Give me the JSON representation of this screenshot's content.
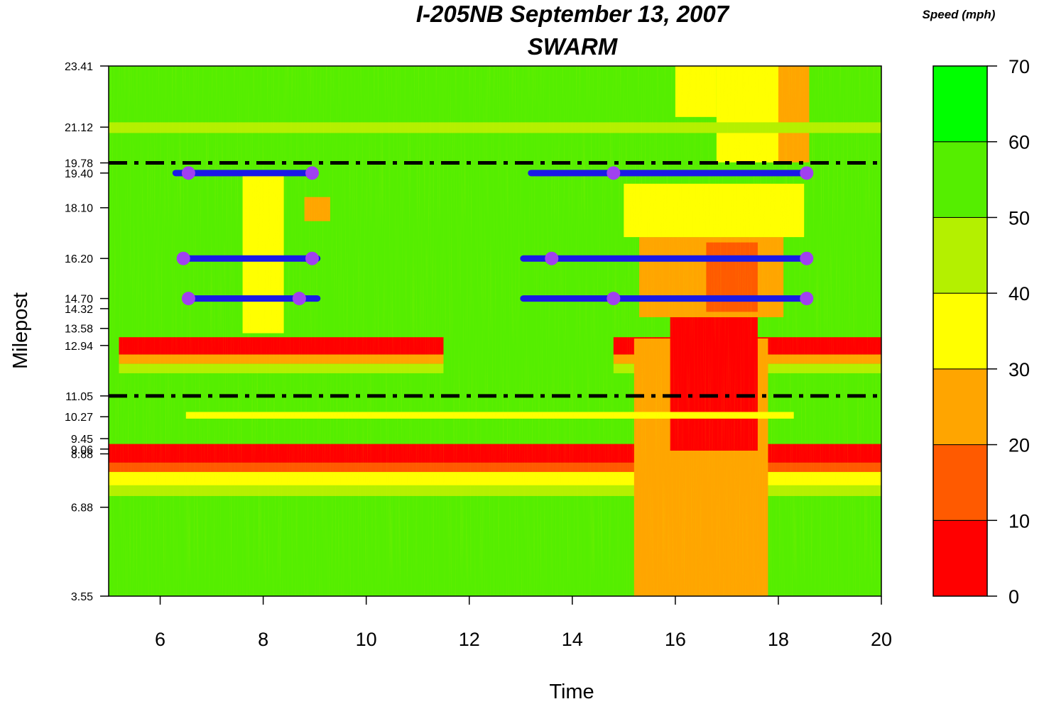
{
  "chart_data": {
    "type": "heatmap",
    "title": "I-205NB September 13, 2007",
    "subtitle": "SWARM",
    "xlabel": "Time",
    "ylabel": "Milepost",
    "xlim": [
      5,
      20
    ],
    "ylim": [
      3.55,
      23.41
    ],
    "x_ticks": [
      6,
      8,
      10,
      12,
      14,
      16,
      18,
      20
    ],
    "y_ticks": [
      "3.55",
      "6.88",
      "8.88",
      "9.06",
      "9.45",
      "10.27",
      "11.05",
      "12.94",
      "13.58",
      "14.32",
      "14.70",
      "16.20",
      "18.10",
      "19.40",
      "19.78",
      "21.12",
      "23.41"
    ],
    "colorbar": {
      "label": "Speed (mph)",
      "ticks": [
        0,
        10,
        20,
        30,
        40,
        50,
        60,
        70
      ],
      "bins": [
        {
          "from": 0,
          "to": 10,
          "color": "#ff0000"
        },
        {
          "from": 10,
          "to": 20,
          "color": "#ff5a00"
        },
        {
          "from": 20,
          "to": 30,
          "color": "#ffa500"
        },
        {
          "from": 30,
          "to": 40,
          "color": "#ffff00"
        },
        {
          "from": 40,
          "to": 50,
          "color": "#b4f000"
        },
        {
          "from": 50,
          "to": 60,
          "color": "#55ee00"
        },
        {
          "from": 60,
          "to": 70,
          "color": "#00ff00"
        }
      ]
    },
    "background_speed": 55,
    "congestion_regions": [
      {
        "t": [
          5.0,
          20.0
        ],
        "mp": [
          8.55,
          9.25
        ],
        "speed": 5
      },
      {
        "t": [
          5.0,
          20.0
        ],
        "mp": [
          8.2,
          8.55
        ],
        "speed": 18
      },
      {
        "t": [
          5.0,
          20.0
        ],
        "mp": [
          7.7,
          8.2
        ],
        "speed": 35
      },
      {
        "t": [
          5.0,
          20.0
        ],
        "mp": [
          7.3,
          7.7
        ],
        "speed": 45
      },
      {
        "t": [
          5.2,
          11.5
        ],
        "mp": [
          12.6,
          13.25
        ],
        "speed": 5
      },
      {
        "t": [
          5.2,
          11.5
        ],
        "mp": [
          12.25,
          12.6
        ],
        "speed": 22
      },
      {
        "t": [
          5.2,
          11.5
        ],
        "mp": [
          11.9,
          12.25
        ],
        "speed": 40
      },
      {
        "t": [
          14.8,
          20.0
        ],
        "mp": [
          12.6,
          13.25
        ],
        "speed": 5
      },
      {
        "t": [
          14.8,
          20.0
        ],
        "mp": [
          12.25,
          12.6
        ],
        "speed": 22
      },
      {
        "t": [
          14.8,
          20.0
        ],
        "mp": [
          11.9,
          12.25
        ],
        "speed": 40
      },
      {
        "t": [
          15.2,
          17.8
        ],
        "mp": [
          3.55,
          13.2
        ],
        "speed": 20
      },
      {
        "t": [
          15.9,
          17.6
        ],
        "mp": [
          9.0,
          14.0
        ],
        "speed": 5
      },
      {
        "t": [
          15.3,
          18.1
        ],
        "mp": [
          14.0,
          17.0
        ],
        "speed": 25
      },
      {
        "t": [
          16.6,
          17.6
        ],
        "mp": [
          14.2,
          16.8
        ],
        "speed": 14
      },
      {
        "t": [
          15.0,
          18.5
        ],
        "mp": [
          17.0,
          19.0
        ],
        "speed": 38
      },
      {
        "t": [
          17.8,
          18.6
        ],
        "mp": [
          19.8,
          23.41
        ],
        "speed": 28
      },
      {
        "t": [
          16.8,
          18.0
        ],
        "mp": [
          19.8,
          23.41
        ],
        "speed": 35
      },
      {
        "t": [
          16.0,
          16.8
        ],
        "mp": [
          21.5,
          23.41
        ],
        "speed": 38
      },
      {
        "t": [
          7.6,
          8.4
        ],
        "mp": [
          13.4,
          19.4
        ],
        "speed": 30
      },
      {
        "t": [
          8.8,
          9.3
        ],
        "mp": [
          17.6,
          18.5
        ],
        "speed": 28
      },
      {
        "t": [
          6.5,
          18.3
        ],
        "mp": [
          10.2,
          10.45
        ],
        "speed": 38
      },
      {
        "t": [
          5.0,
          20.0
        ],
        "mp": [
          20.9,
          21.3
        ],
        "speed": 42
      }
    ],
    "reference_lines": [
      {
        "milepost": 19.78,
        "style": "dash-dot"
      },
      {
        "milepost": 11.05,
        "style": "dash-dot"
      }
    ],
    "segments": [
      {
        "milepost": 19.4,
        "t": [
          6.3,
          9.0
        ],
        "points": [
          6.55,
          8.95
        ]
      },
      {
        "milepost": 16.2,
        "t": [
          6.45,
          9.05
        ],
        "points": [
          6.45,
          8.95
        ]
      },
      {
        "milepost": 14.7,
        "t": [
          6.55,
          9.05
        ],
        "points": [
          6.55,
          8.7
        ]
      },
      {
        "milepost": 19.4,
        "t": [
          13.2,
          18.6
        ],
        "points": [
          14.8,
          18.55
        ]
      },
      {
        "milepost": 16.2,
        "t": [
          13.05,
          18.6
        ],
        "points": [
          13.6,
          18.55
        ]
      },
      {
        "milepost": 14.7,
        "t": [
          13.05,
          18.6
        ],
        "points": [
          14.8,
          18.55
        ]
      }
    ],
    "segment_color": "#1a1ae6",
    "point_color": "#a040f0"
  }
}
